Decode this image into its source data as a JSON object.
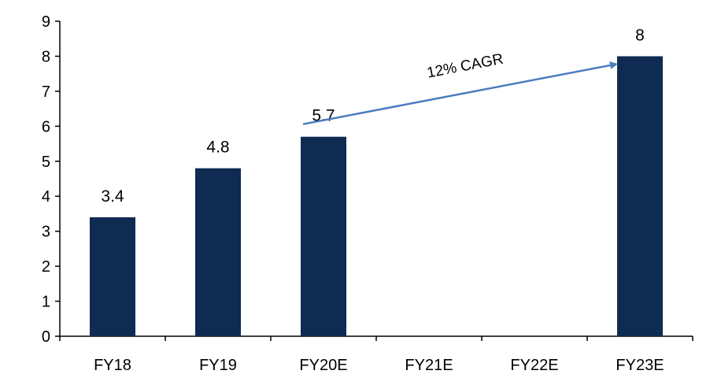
{
  "chart_data": {
    "type": "bar",
    "categories": [
      "FY18",
      "FY19",
      "FY20E",
      "FY21E",
      "FY22E",
      "FY23E"
    ],
    "values": [
      3.4,
      4.8,
      5.7,
      null,
      null,
      8
    ],
    "data_labels": [
      "3.4",
      "4.8",
      "5.7",
      "",
      "",
      "8"
    ],
    "title": "",
    "xlabel": "",
    "ylabel": "",
    "ylim": [
      0,
      9
    ],
    "yticks": [
      0,
      1,
      2,
      3,
      4,
      5,
      6,
      7,
      8,
      9
    ],
    "grid": false,
    "legend": "none",
    "bar_color": "#0f2b52",
    "annotation": {
      "text": "12% CAGR",
      "from_category": "FY20E",
      "to_category": "FY23E",
      "arrow_color": "#4a7cc0"
    }
  }
}
